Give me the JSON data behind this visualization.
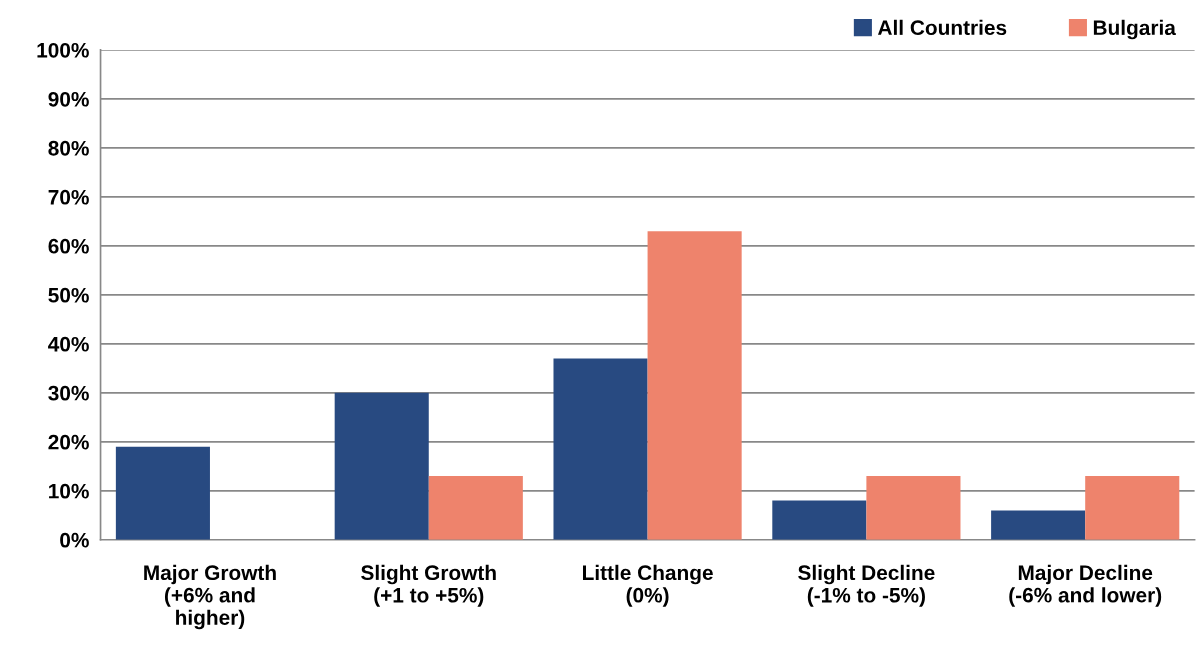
{
  "chart_data": {
    "type": "bar",
    "categories": [
      "Major Growth\n(+6% and\nhigher)",
      "Slight Growth\n(+1 to +5%)",
      "Little Change\n(0%)",
      "Slight Decline\n(-1% to -5%)",
      "Major Decline\n(-6% and lower)"
    ],
    "series": [
      {
        "name": "All Countries",
        "color": "#284a81",
        "values": [
          19,
          30,
          37,
          8,
          6
        ]
      },
      {
        "name": "Bulgaria",
        "color": "#ee836c",
        "values": [
          0,
          13,
          63,
          13,
          13
        ]
      }
    ],
    "ylim": [
      0,
      100
    ],
    "yticks": [
      {
        "value": 0,
        "label": "0%"
      },
      {
        "value": 10,
        "label": "10%"
      },
      {
        "value": 20,
        "label": "20%"
      },
      {
        "value": 30,
        "label": "30%"
      },
      {
        "value": 40,
        "label": "40%"
      },
      {
        "value": 50,
        "label": "50%"
      },
      {
        "value": 60,
        "label": "60%"
      },
      {
        "value": 70,
        "label": "70%"
      },
      {
        "value": 80,
        "label": "80%"
      },
      {
        "value": 90,
        "label": "90%"
      },
      {
        "value": 100,
        "label": "100%"
      }
    ],
    "grid": "y",
    "legend": "top right"
  }
}
